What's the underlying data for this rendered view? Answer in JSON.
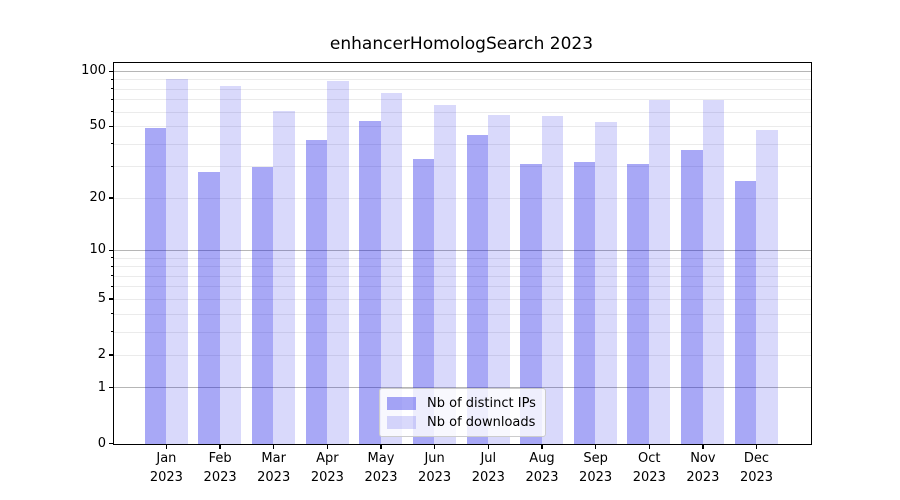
{
  "chart_data": {
    "type": "bar",
    "title": "enhancerHomologSearch 2023",
    "categories": [
      "Jan",
      "Feb",
      "Mar",
      "Apr",
      "May",
      "Jun",
      "Jul",
      "Aug",
      "Sep",
      "Oct",
      "Nov",
      "Dec"
    ],
    "year_label": "2023",
    "series": [
      {
        "name": "Nb of distinct IPs",
        "color": "rgba(0,0,230,0.34)",
        "effective_hex": "#a9a9f7",
        "values": [
          49,
          28,
          30,
          42,
          54,
          33,
          45,
          31,
          32,
          31,
          37,
          25
        ]
      },
      {
        "name": "Nb of downloads",
        "color": "rgba(0,0,230,0.15)",
        "effective_hex": "#d9d9fa",
        "values": [
          91,
          83,
          61,
          89,
          76,
          66,
          58,
          57,
          53,
          70,
          70,
          48
        ]
      }
    ],
    "y_axis": {
      "scale": "log1p",
      "tick_labels": [
        100,
        50,
        20,
        10,
        5,
        2,
        1,
        0
      ],
      "major_gridlines": [
        1,
        10,
        100
      ],
      "minor_gridlines": [
        2,
        3,
        4,
        5,
        6,
        7,
        8,
        9,
        20,
        30,
        40,
        50,
        60,
        70,
        80,
        90
      ],
      "range": [
        0,
        110
      ]
    },
    "legend_position": "lower center",
    "grid": true,
    "colors": {
      "grid_major": "#b6b6b6",
      "grid_minor": "#ebebeb",
      "spine": "#000000",
      "background": "#ffffff"
    }
  }
}
